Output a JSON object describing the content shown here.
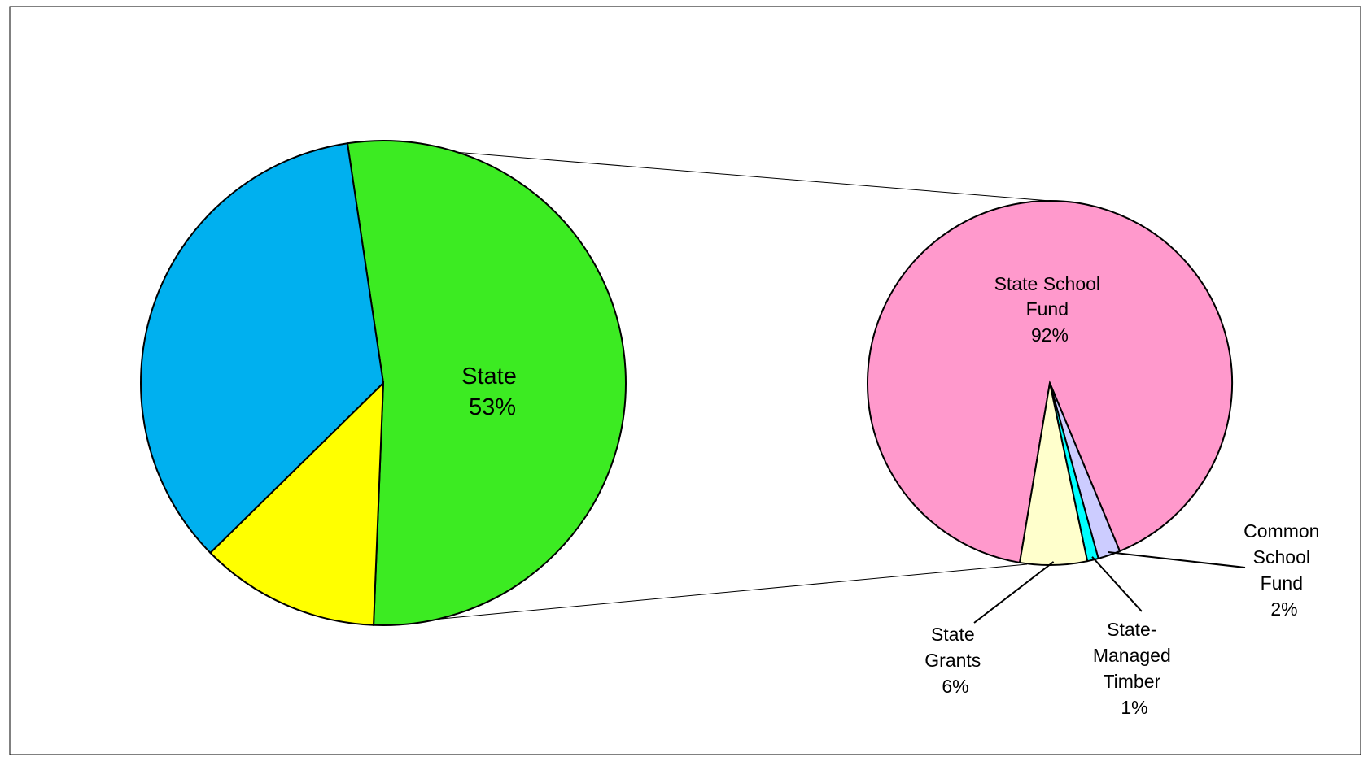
{
  "chart_data": {
    "type": "pie",
    "subtype": "pie-of-pie",
    "main_pie": {
      "slices": [
        {
          "label": "State",
          "value": 53,
          "color": "#3CEB22",
          "shown_label": true
        },
        {
          "label": "",
          "value": 12,
          "color": "#FFFF00",
          "shown_label": false
        },
        {
          "label": "",
          "value": 35,
          "color": "#00B0EF",
          "shown_label": false
        }
      ]
    },
    "breakout_pie": {
      "slices": [
        {
          "label": "State School Fund",
          "value": 92,
          "color": "#FF99CC"
        },
        {
          "label": "Common School Fund",
          "value": 2,
          "color": "#CCCCFF"
        },
        {
          "label": "State-Managed Timber",
          "value": 1,
          "color": "#00FFFF"
        },
        {
          "label": "State Grants",
          "value": 6,
          "color": "#FFFFCC"
        }
      ]
    },
    "labels": {
      "state": [
        "State",
        "53%"
      ],
      "state_school_fund": [
        "State School",
        "Fund",
        "92%"
      ],
      "common_school_fund": [
        "Common",
        "School",
        "Fund",
        "2%"
      ],
      "state_managed_timber": [
        "State-",
        "Managed",
        "Timber",
        "1%"
      ],
      "state_grants": [
        "State",
        "Grants",
        "6%"
      ]
    },
    "legend": "none",
    "title": ""
  }
}
